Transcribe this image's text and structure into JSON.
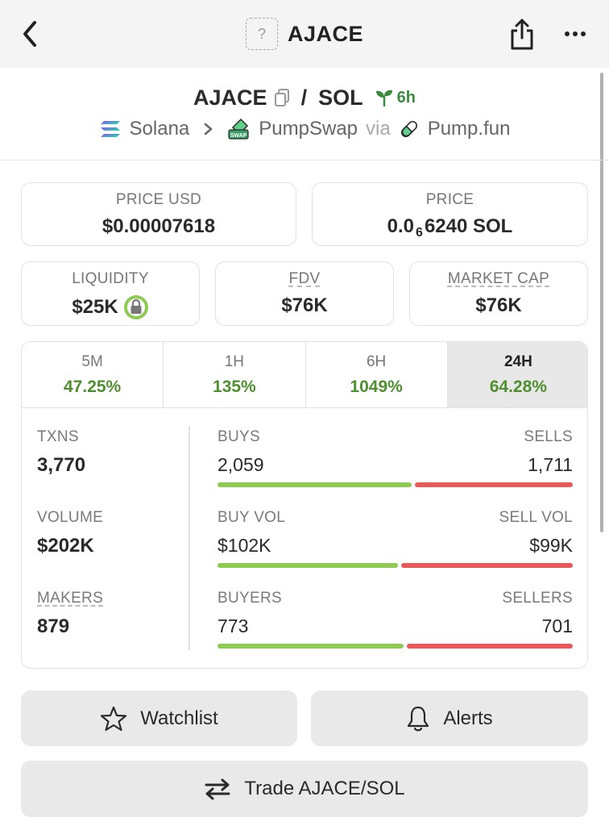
{
  "nav": {
    "title": "AJACE",
    "placeholder_icon": "?"
  },
  "pair": {
    "base": "AJACE",
    "separator": "/",
    "quote": "SOL",
    "age": "6h",
    "chain": "Solana",
    "dex": "PumpSwap",
    "via": "via",
    "launchpad": "Pump.fun",
    "dex_badge": "SWAP"
  },
  "stats": {
    "price_usd": {
      "label": "PRICE USD",
      "value": "$0.00007618"
    },
    "price_native": {
      "label": "PRICE",
      "prefix": "0.0",
      "subscript": "6",
      "digits": "6240 SOL"
    },
    "liquidity": {
      "label": "LIQUIDITY",
      "value": "$25K"
    },
    "fdv": {
      "label": "FDV",
      "value": "$76K"
    },
    "market_cap": {
      "label": "MARKET CAP",
      "value": "$76K"
    }
  },
  "timeframes": [
    {
      "label": "5M",
      "change": "47.25%"
    },
    {
      "label": "1H",
      "change": "135%"
    },
    {
      "label": "6H",
      "change": "1049%"
    },
    {
      "label": "24H",
      "change": "64.28%"
    }
  ],
  "metrics": {
    "txns": {
      "label": "TXNS",
      "value": "3,770"
    },
    "volume": {
      "label": "VOLUME",
      "value": "$202K"
    },
    "makers": {
      "label": "MAKERS",
      "value": "879"
    }
  },
  "splits": {
    "trades": {
      "left_label": "BUYS",
      "right_label": "SELLS",
      "left_value": "2,059",
      "right_value": "1,711",
      "buy_ratio": 0.546
    },
    "volume": {
      "left_label": "BUY VOL",
      "right_label": "SELL VOL",
      "left_value": "$102K",
      "right_value": "$99K",
      "buy_ratio": 0.508
    },
    "traders": {
      "left_label": "BUYERS",
      "right_label": "SELLERS",
      "left_value": "773",
      "right_value": "701",
      "buy_ratio": 0.524
    }
  },
  "actions": {
    "watchlist": "Watchlist",
    "alerts": "Alerts",
    "trade": "Trade AJACE/SOL"
  },
  "colors": {
    "positive": "#4f8f2f",
    "buy_bar": "#8fca55",
    "sell_bar": "#e85a5a",
    "accent_green": "#3b8a3e"
  }
}
